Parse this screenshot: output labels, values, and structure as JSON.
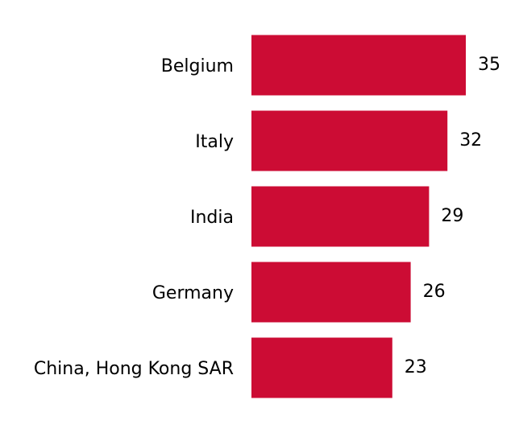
{
  "chart_data": {
    "type": "hbar",
    "categories": [
      "Belgium",
      "Italy",
      "India",
      "Germany",
      "China, Hong Kong SAR"
    ],
    "values": [
      35,
      32,
      29,
      26,
      23
    ],
    "color": "#cc0c34"
  }
}
